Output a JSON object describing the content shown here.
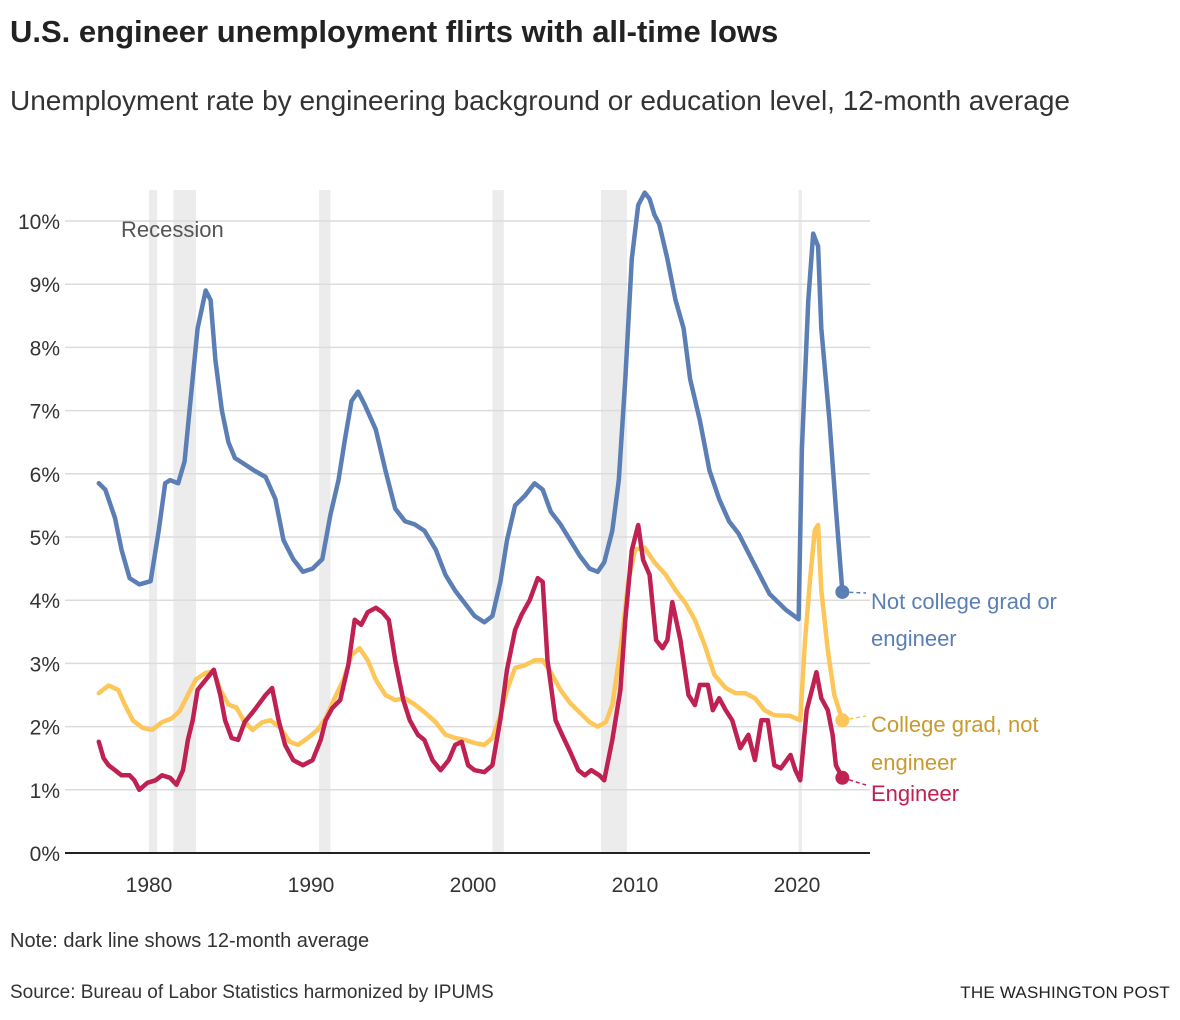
{
  "header": {
    "title": "U.S. engineer unemployment flirts with all-time lows",
    "subtitle": "Unemployment rate by engineering background or education level, 12-month average"
  },
  "footer": {
    "note": "Note: dark line shows 12-month average",
    "source": "Source: Bureau of Labor Statistics harmonized by IPUMS",
    "credit": "THE WASHINGTON POST"
  },
  "chart_data": {
    "type": "line",
    "title": "U.S. engineer unemployment flirts with all-time lows",
    "xlabel": "",
    "ylabel": "",
    "xlim": [
      1976.5,
      2024.3
    ],
    "ylim": [
      0,
      10
    ],
    "x_ticks": [
      1980,
      1990,
      2000,
      2010,
      2020
    ],
    "x_tick_labels": [
      "1980",
      "1990",
      "2000",
      "2010",
      "2020"
    ],
    "y_ticks": [
      0,
      1,
      2,
      3,
      4,
      5,
      6,
      7,
      8,
      9,
      10
    ],
    "y_tick_labels": [
      "0%",
      "1%",
      "2%",
      "3%",
      "4%",
      "5%",
      "6%",
      "7%",
      "8%",
      "9%",
      "10%"
    ],
    "grid": "horizontal",
    "legend": "direct labels at line ends (right)",
    "recession_label": "Recession",
    "recession_color": "#ececec",
    "recessions": [
      [
        1980.0,
        1980.5
      ],
      [
        1981.5,
        1982.9
      ],
      [
        1990.5,
        1991.2
      ],
      [
        2001.2,
        2001.9
      ],
      [
        2007.9,
        2009.5
      ],
      [
        2020.1,
        2020.3
      ]
    ],
    "series": [
      {
        "name": "Not college grad or engineer",
        "label_lines": [
          "Not college grad or",
          "engineer"
        ],
        "color": "#5b7fb5",
        "label_color": "#5b7fb5",
        "x": [
          1976.9,
          1977.3,
          1977.9,
          1978.3,
          1978.8,
          1979.4,
          1980.1,
          1980.6,
          1981.0,
          1981.3,
          1981.8,
          1982.2,
          1982.5,
          1983.0,
          1983.5,
          1983.8,
          1984.1,
          1984.5,
          1984.9,
          1985.3,
          1985.9,
          1986.5,
          1987.2,
          1987.8,
          1988.3,
          1988.9,
          1989.5,
          1990.1,
          1990.7,
          1991.2,
          1991.7,
          1992.1,
          1992.5,
          1992.9,
          1993.3,
          1994.0,
          1994.6,
          1995.2,
          1995.8,
          1996.4,
          1997.0,
          1997.7,
          1998.3,
          1998.9,
          1999.5,
          2000.1,
          2000.7,
          2001.2,
          2001.7,
          2002.1,
          2002.6,
          2003.2,
          2003.8,
          2004.3,
          2004.8,
          2005.4,
          2006.0,
          2006.6,
          2007.2,
          2007.7,
          2008.1,
          2008.6,
          2009.0,
          2009.4,
          2009.8,
          2010.2,
          2010.6,
          2010.9,
          2011.2,
          2011.5,
          2012.0,
          2012.5,
          2013.0,
          2013.4,
          2014.0,
          2014.6,
          2015.2,
          2015.8,
          2016.4,
          2017.1,
          2017.7,
          2018.3,
          2019.3,
          2020.1,
          2020.3,
          2020.7,
          2021.0,
          2021.3,
          2021.5,
          2022.0,
          2022.4,
          2022.8
        ],
        "y": [
          5.85,
          5.75,
          5.3,
          4.8,
          4.35,
          4.25,
          4.3,
          5.1,
          5.85,
          5.9,
          5.85,
          6.2,
          7.0,
          8.3,
          8.9,
          8.75,
          7.8,
          7.0,
          6.5,
          6.25,
          6.15,
          6.05,
          5.95,
          5.6,
          4.95,
          4.65,
          4.45,
          4.5,
          4.65,
          5.35,
          5.9,
          6.55,
          7.15,
          7.3,
          7.1,
          6.7,
          6.05,
          5.45,
          5.25,
          5.2,
          5.1,
          4.8,
          4.4,
          4.15,
          3.95,
          3.75,
          3.65,
          3.75,
          4.3,
          4.95,
          5.5,
          5.65,
          5.85,
          5.75,
          5.4,
          5.2,
          4.95,
          4.7,
          4.5,
          4.45,
          4.6,
          5.1,
          5.9,
          7.5,
          9.4,
          10.25,
          10.45,
          10.35,
          10.1,
          9.95,
          9.4,
          8.75,
          8.3,
          7.5,
          6.85,
          6.05,
          5.6,
          5.25,
          5.05,
          4.7,
          4.4,
          4.1,
          3.85,
          3.7,
          6.4,
          8.75,
          9.8,
          9.6,
          8.3,
          6.85,
          5.45,
          4.13
        ]
      },
      {
        "name": "College grad, not engineer",
        "label_lines": [
          "College grad, not",
          "engineer"
        ],
        "color": "#fcc659",
        "label_color": "#c99a2e",
        "x": [
          1976.9,
          1977.5,
          1978.1,
          1978.5,
          1979.0,
          1979.6,
          1980.2,
          1980.8,
          1981.4,
          1981.9,
          1982.4,
          1982.9,
          1983.5,
          1984.0,
          1984.4,
          1984.9,
          1985.4,
          1985.9,
          1986.4,
          1987.0,
          1987.5,
          1988.1,
          1988.7,
          1989.2,
          1989.8,
          1990.4,
          1990.9,
          1991.4,
          1992.0,
          1992.5,
          1993.0,
          1993.5,
          1994.0,
          1994.6,
          1995.2,
          1995.8,
          1996.4,
          1997.0,
          1997.7,
          1998.3,
          1998.9,
          1999.5,
          2000.1,
          2000.7,
          2001.2,
          2001.7,
          2002.1,
          2002.6,
          2003.2,
          2003.8,
          2004.3,
          2004.8,
          2005.4,
          2006.0,
          2006.6,
          2007.2,
          2007.7,
          2008.2,
          2008.6,
          2009.1,
          2009.6,
          2010.0,
          2010.6,
          2011.2,
          2011.9,
          2012.5,
          2013.1,
          2013.7,
          2014.3,
          2014.9,
          2015.6,
          2016.2,
          2016.8,
          2017.4,
          2018.0,
          2018.6,
          2019.6,
          2020.2,
          2020.5,
          2020.8,
          2021.1,
          2021.3,
          2021.5,
          2021.9,
          2022.3,
          2022.8
        ],
        "y": [
          2.53,
          2.65,
          2.58,
          2.35,
          2.1,
          1.98,
          1.95,
          2.07,
          2.13,
          2.25,
          2.5,
          2.75,
          2.85,
          2.87,
          2.58,
          2.35,
          2.3,
          2.07,
          1.95,
          2.07,
          2.1,
          1.98,
          1.76,
          1.71,
          1.82,
          1.95,
          2.13,
          2.42,
          2.74,
          3.13,
          3.24,
          3.05,
          2.74,
          2.5,
          2.42,
          2.45,
          2.35,
          2.23,
          2.07,
          1.87,
          1.82,
          1.79,
          1.74,
          1.71,
          1.82,
          2.18,
          2.58,
          2.93,
          2.97,
          3.05,
          3.05,
          2.86,
          2.58,
          2.37,
          2.22,
          2.07,
          2.0,
          2.07,
          2.34,
          3.21,
          4.32,
          4.8,
          4.83,
          4.6,
          4.4,
          4.16,
          3.96,
          3.69,
          3.29,
          2.82,
          2.61,
          2.53,
          2.53,
          2.45,
          2.26,
          2.18,
          2.17,
          2.1,
          3.37,
          4.32,
          5.11,
          5.19,
          4.16,
          3.21,
          2.5,
          2.1
        ]
      },
      {
        "name": "Engineer",
        "label_lines": [
          "Engineer"
        ],
        "color": "#bf2152",
        "label_color": "#bf2152",
        "x": [
          1976.9,
          1977.2,
          1977.5,
          1977.9,
          1978.3,
          1978.8,
          1979.1,
          1979.4,
          1979.9,
          1980.4,
          1980.8,
          1981.3,
          1981.7,
          1982.1,
          1982.4,
          1982.7,
          1983.0,
          1983.5,
          1984.0,
          1984.4,
          1984.7,
          1985.1,
          1985.5,
          1985.9,
          1986.5,
          1987.2,
          1987.6,
          1988.0,
          1988.4,
          1988.9,
          1989.5,
          1990.1,
          1990.6,
          1990.9,
          1991.3,
          1991.8,
          1992.3,
          1992.7,
          1993.1,
          1993.5,
          1994.0,
          1994.4,
          1994.8,
          1995.2,
          1995.7,
          1996.1,
          1996.6,
          1997.0,
          1997.5,
          1998.0,
          1998.5,
          1998.9,
          1999.3,
          1999.7,
          2000.1,
          2000.7,
          2001.2,
          2001.7,
          2002.1,
          2002.6,
          2003.0,
          2003.5,
          2004.0,
          2004.3,
          2004.6,
          2005.1,
          2005.5,
          2006.0,
          2006.5,
          2006.9,
          2007.3,
          2007.8,
          2008.1,
          2008.6,
          2009.1,
          2009.4,
          2009.8,
          2010.2,
          2010.5,
          2010.9,
          2011.3,
          2011.7,
          2012.0,
          2012.3,
          2012.8,
          2013.3,
          2013.7,
          2014.0,
          2014.5,
          2014.8,
          2015.2,
          2015.6,
          2016.0,
          2016.5,
          2017.0,
          2017.4,
          2017.8,
          2018.2,
          2018.6,
          2019.0,
          2019.6,
          2019.9,
          2020.2,
          2020.6,
          2021.0,
          2021.2,
          2021.5,
          2021.9,
          2022.2,
          2022.4,
          2022.8
        ],
        "y": [
          1.76,
          1.5,
          1.39,
          1.31,
          1.23,
          1.23,
          1.15,
          1.0,
          1.11,
          1.15,
          1.23,
          1.19,
          1.08,
          1.31,
          1.79,
          2.1,
          2.58,
          2.74,
          2.9,
          2.5,
          2.1,
          1.82,
          1.79,
          2.07,
          2.26,
          2.5,
          2.61,
          2.1,
          1.71,
          1.47,
          1.39,
          1.47,
          1.79,
          2.1,
          2.29,
          2.42,
          2.97,
          3.69,
          3.61,
          3.81,
          3.88,
          3.81,
          3.69,
          3.05,
          2.42,
          2.1,
          1.87,
          1.79,
          1.47,
          1.31,
          1.47,
          1.71,
          1.76,
          1.39,
          1.31,
          1.28,
          1.39,
          2.13,
          2.9,
          3.53,
          3.77,
          4.0,
          4.35,
          4.29,
          3.05,
          2.1,
          1.87,
          1.6,
          1.31,
          1.23,
          1.31,
          1.23,
          1.15,
          1.79,
          2.58,
          3.69,
          4.79,
          5.19,
          4.64,
          4.4,
          3.37,
          3.24,
          3.37,
          3.97,
          3.37,
          2.5,
          2.34,
          2.66,
          2.66,
          2.26,
          2.45,
          2.26,
          2.1,
          1.66,
          1.87,
          1.47,
          2.1,
          2.1,
          1.39,
          1.34,
          1.55,
          1.31,
          1.15,
          2.26,
          2.66,
          2.86,
          2.45,
          2.26,
          1.87,
          1.39,
          1.19
        ]
      }
    ]
  }
}
